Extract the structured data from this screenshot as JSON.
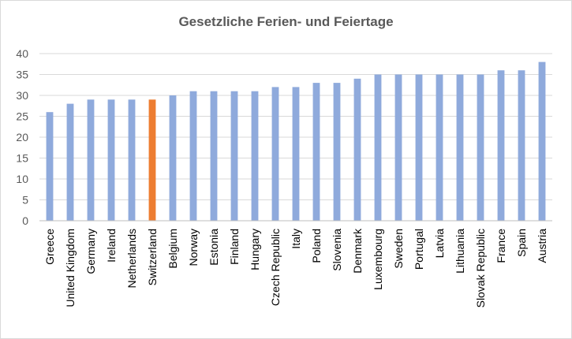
{
  "chart_data": {
    "type": "bar",
    "title": "Gesetzliche Ferien- und Feiertage",
    "xlabel": "",
    "ylabel": "",
    "ylim": [
      0,
      40
    ],
    "yticks": [
      0,
      5,
      10,
      15,
      20,
      25,
      30,
      35,
      40
    ],
    "grid": true,
    "legend": "none",
    "categories": [
      "Greece",
      "United Kingdom",
      "Germany",
      "Ireland",
      "Netherlands",
      "Switzerland",
      "Belgium",
      "Norway",
      "Estonia",
      "Finland",
      "Hungary",
      "Czech Republic",
      "Italy",
      "Poland",
      "Slovenia",
      "Denmark",
      "Luxembourg",
      "Sweden",
      "Portugal",
      "Latvia",
      "Lithuania",
      "Slovak Republic",
      "France",
      "Spain",
      "Austria"
    ],
    "values": [
      26,
      28,
      29,
      29,
      29,
      29,
      30,
      31,
      31,
      31,
      31,
      32,
      32,
      33,
      33,
      34,
      35,
      35,
      35,
      35,
      35,
      35,
      36,
      36,
      38
    ],
    "colors": {
      "default": "#8faadc",
      "highlight": "#ed7d31",
      "gridline": "#d9d9d9",
      "axis": "#bfbfbf"
    },
    "highlight_category": "Switzerland"
  }
}
